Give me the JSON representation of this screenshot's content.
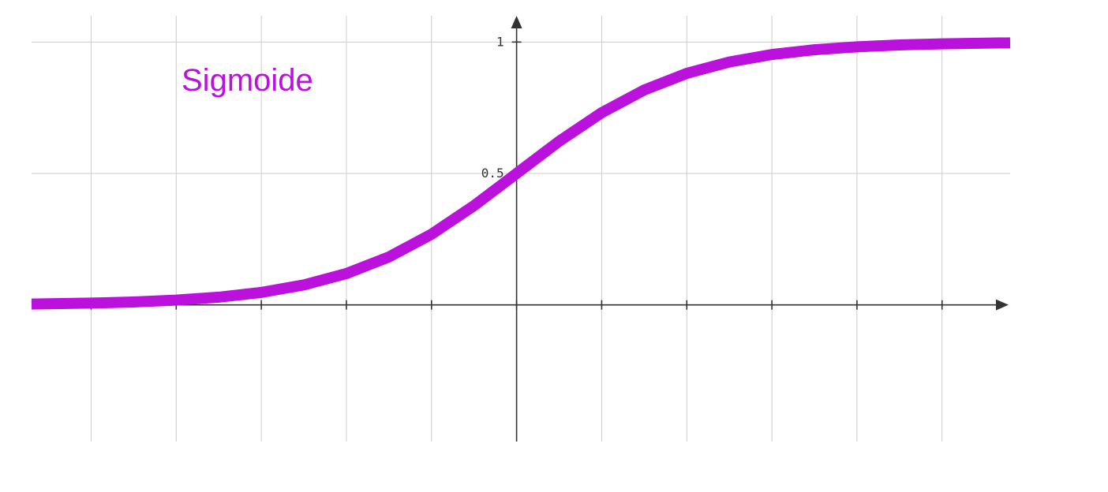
{
  "chart_data": {
    "type": "line",
    "title": "Sigmoide",
    "xlabel": "",
    "ylabel": "",
    "xlim": [
      -5.7,
      5.8
    ],
    "ylim": [
      -0.52,
      1.1
    ],
    "x_ticks": [
      -5,
      -4,
      -3,
      -2,
      -1,
      0,
      1,
      2,
      3,
      4,
      5
    ],
    "y_ticks": [
      0.5,
      1
    ],
    "y_tick_labels": [
      "0.5",
      "1"
    ],
    "grid": true,
    "series": [
      {
        "color": "#bb11dd",
        "x": [
          -5.7,
          -5.5,
          -5,
          -4.5,
          -4,
          -3.5,
          -3,
          -2.5,
          -2,
          -1.5,
          -1,
          -0.5,
          0,
          0.5,
          1,
          1.5,
          2,
          2.5,
          3,
          3.5,
          4,
          4.5,
          5,
          5.5,
          5.8
        ],
        "y": [
          0.0033,
          0.0041,
          0.0067,
          0.011,
          0.018,
          0.0293,
          0.0474,
          0.0759,
          0.1192,
          0.1824,
          0.2689,
          0.3775,
          0.5,
          0.6225,
          0.7311,
          0.8176,
          0.8808,
          0.9241,
          0.9526,
          0.9707,
          0.982,
          0.989,
          0.9933,
          0.9959,
          0.997
        ]
      }
    ]
  }
}
